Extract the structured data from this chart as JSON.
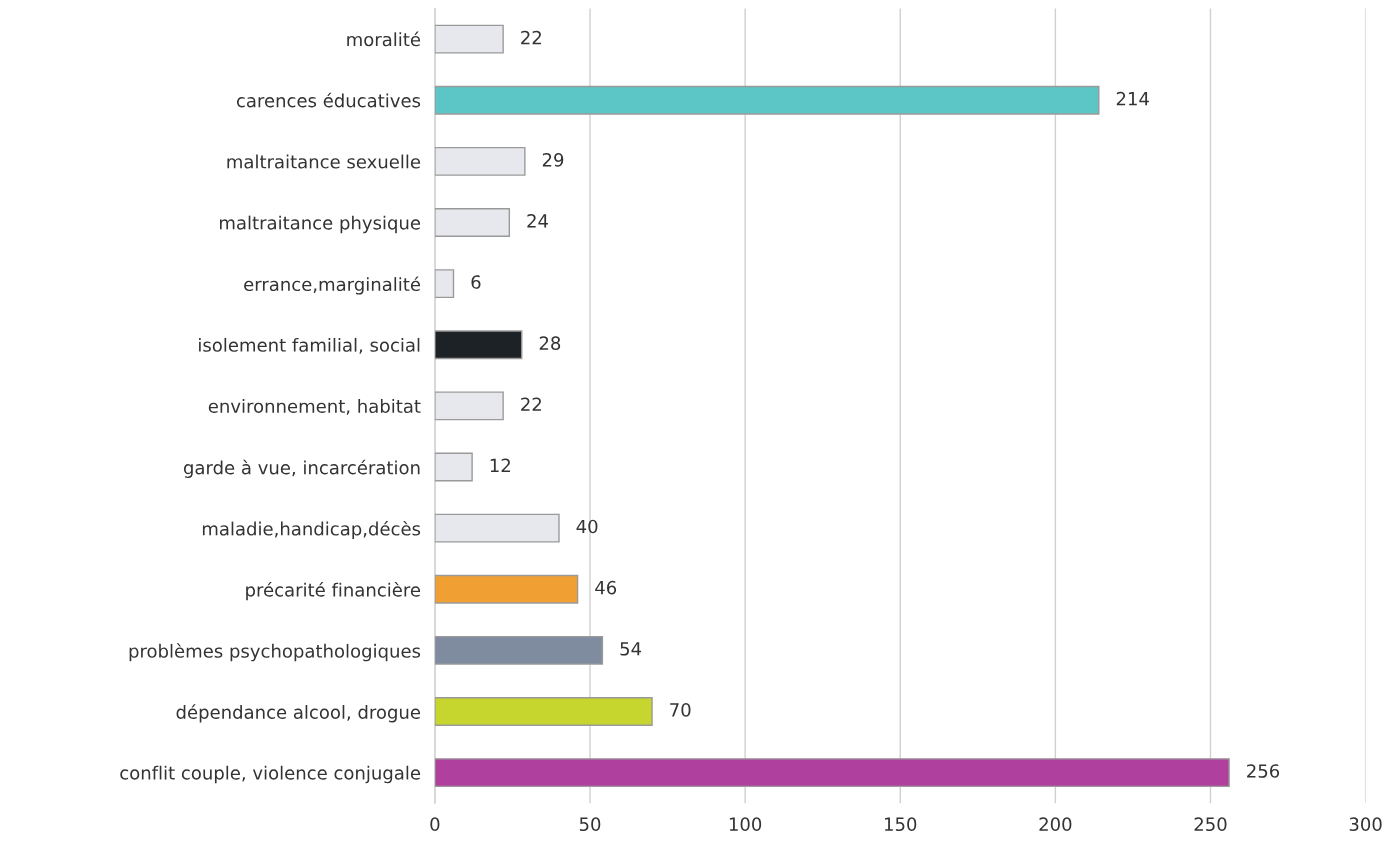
{
  "chart_data": {
    "type": "bar",
    "orientation": "horizontal",
    "categories": [
      "moralité",
      "carences éducatives",
      "maltraitance sexuelle",
      "maltraitance physique",
      "errance,marginalité",
      "isolement familial, social",
      "environnement, habitat",
      "garde à vue, incarcération",
      "maladie,handicap,décès",
      "précarité financière",
      "problèmes psychopathologiques",
      "dépendance alcool, drogue",
      "conflit couple, violence conjugale"
    ],
    "values": [
      22,
      214,
      29,
      24,
      6,
      28,
      22,
      12,
      40,
      46,
      54,
      70,
      256
    ],
    "colors": [
      "#e6e8ee",
      "#5cc6c6",
      "#e6e8ee",
      "#e6e8ee",
      "#e6e8ee",
      "#1c2226",
      "#e6e8ee",
      "#e6e8ee",
      "#e6e8ee",
      "#f0a033",
      "#7f8ca0",
      "#c6d62e",
      "#b0409e"
    ],
    "xlim": [
      0,
      300
    ],
    "xticks": [
      0,
      50,
      100,
      150,
      200,
      250,
      300
    ],
    "grid": "x",
    "data_labels": true
  }
}
